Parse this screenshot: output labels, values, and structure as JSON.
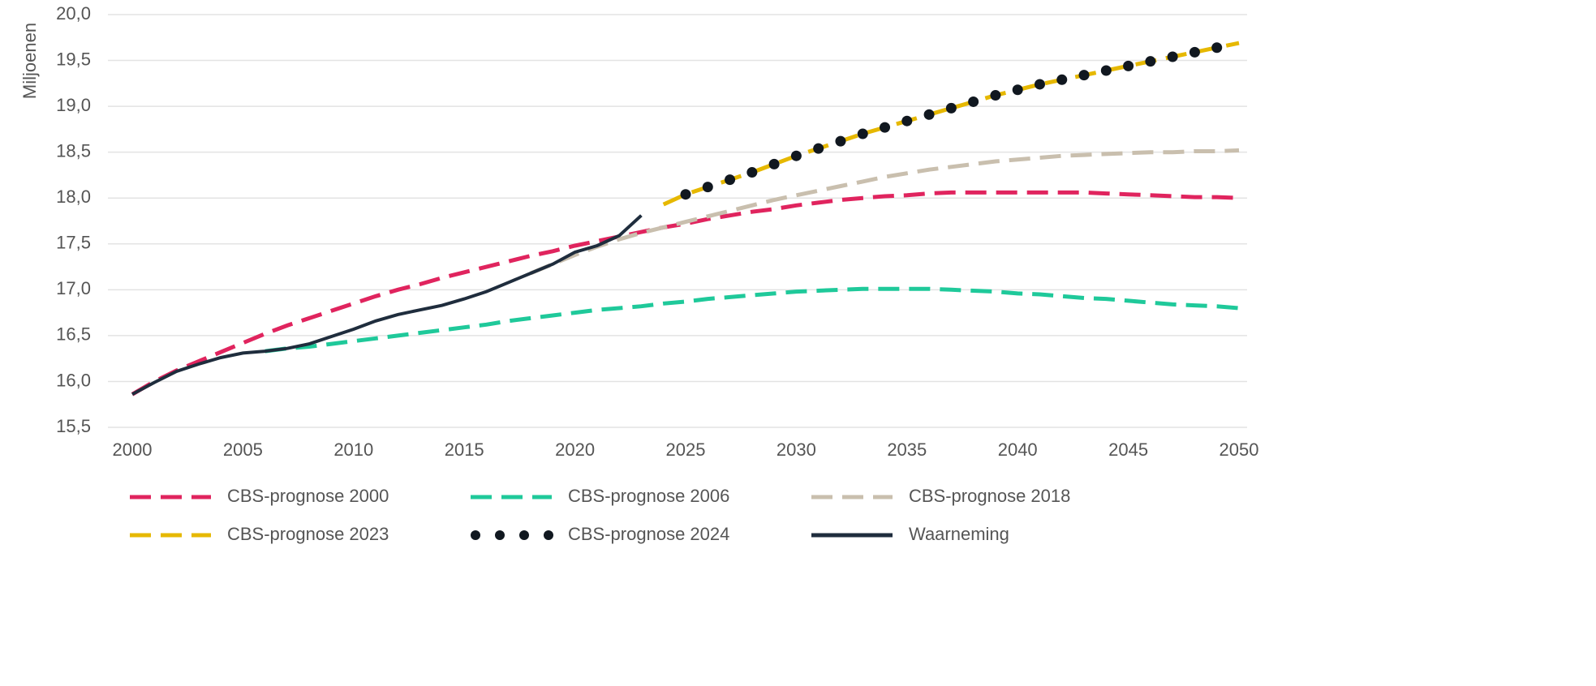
{
  "chart_data": {
    "type": "line",
    "y_label": "Miljoenen",
    "x": [
      2000,
      2001,
      2002,
      2003,
      2004,
      2005,
      2006,
      2007,
      2008,
      2009,
      2010,
      2011,
      2012,
      2013,
      2014,
      2015,
      2016,
      2017,
      2018,
      2019,
      2020,
      2021,
      2022,
      2023,
      2024,
      2025,
      2026,
      2027,
      2028,
      2029,
      2030,
      2031,
      2032,
      2033,
      2034,
      2035,
      2036,
      2037,
      2038,
      2039,
      2040,
      2041,
      2042,
      2043,
      2044,
      2045,
      2046,
      2047,
      2048,
      2049,
      2050
    ],
    "xlim": [
      2000,
      2050
    ],
    "xticks": [
      2000,
      2005,
      2010,
      2015,
      2020,
      2025,
      2030,
      2035,
      2040,
      2045,
      2050
    ],
    "ylim": [
      15.5,
      20
    ],
    "yticks": [
      {
        "value": 15.5,
        "label": "15,5"
      },
      {
        "value": 16,
        "label": "16,0"
      },
      {
        "value": 16.5,
        "label": "16,5"
      },
      {
        "value": 17,
        "label": "17,0"
      },
      {
        "value": 17.5,
        "label": "17,5"
      },
      {
        "value": 18,
        "label": "18,0"
      },
      {
        "value": 18.5,
        "label": "18,5"
      },
      {
        "value": 19,
        "label": "19,0"
      },
      {
        "value": 19.5,
        "label": "19,5"
      },
      {
        "value": 20,
        "label": "20,0"
      }
    ],
    "grid": true,
    "legend": "bottom",
    "series": [
      {
        "name": "CBS-prognose 2000",
        "color": "#e0245e",
        "dash": "dashed",
        "values": [
          15.86,
          16.0,
          16.12,
          16.22,
          16.32,
          16.42,
          16.52,
          16.61,
          16.69,
          16.77,
          16.85,
          16.93,
          17.0,
          17.06,
          17.13,
          17.19,
          17.25,
          17.31,
          17.37,
          17.42,
          17.48,
          17.53,
          17.58,
          17.63,
          17.68,
          17.72,
          17.77,
          17.81,
          17.85,
          17.88,
          17.92,
          17.95,
          17.98,
          18.0,
          18.02,
          18.03,
          18.05,
          18.06,
          18.06,
          18.06,
          18.06,
          18.06,
          18.06,
          18.06,
          18.05,
          18.04,
          18.03,
          18.02,
          18.01,
          18.01,
          18.0
        ]
      },
      {
        "name": "CBS-prognose 2006",
        "color": "#1fc99a",
        "dash": "dashed",
        "values": [
          null,
          null,
          null,
          null,
          null,
          null,
          16.33,
          16.36,
          16.38,
          16.41,
          16.44,
          16.47,
          16.5,
          16.53,
          16.56,
          16.59,
          16.62,
          16.66,
          16.69,
          16.72,
          16.75,
          16.78,
          16.8,
          16.82,
          16.85,
          16.87,
          16.9,
          16.92,
          16.94,
          16.96,
          16.98,
          16.99,
          17.0,
          17.01,
          17.01,
          17.01,
          17.01,
          17.0,
          16.99,
          16.98,
          16.96,
          16.95,
          16.93,
          16.91,
          16.9,
          16.88,
          16.86,
          16.84,
          16.83,
          16.82,
          16.8
        ]
      },
      {
        "name": "CBS-prognose 2018",
        "color": "#c9bfae",
        "dash": "dashed",
        "values": [
          null,
          null,
          null,
          null,
          null,
          null,
          null,
          null,
          null,
          null,
          null,
          null,
          null,
          null,
          null,
          null,
          null,
          null,
          17.18,
          17.28,
          17.38,
          17.47,
          17.55,
          17.62,
          17.68,
          17.74,
          17.8,
          17.86,
          17.92,
          17.98,
          18.03,
          18.08,
          18.13,
          18.18,
          18.23,
          18.27,
          18.31,
          18.34,
          18.37,
          18.4,
          18.42,
          18.44,
          18.46,
          18.47,
          18.48,
          18.49,
          18.5,
          18.5,
          18.51,
          18.51,
          18.52
        ]
      },
      {
        "name": "CBS-prognose 2023",
        "color": "#e6b800",
        "dash": "dashed",
        "values": [
          null,
          null,
          null,
          null,
          null,
          null,
          null,
          null,
          null,
          null,
          null,
          null,
          null,
          null,
          null,
          null,
          null,
          null,
          null,
          null,
          null,
          null,
          null,
          null,
          17.93,
          18.04,
          18.12,
          18.2,
          18.28,
          18.37,
          18.46,
          18.54,
          18.62,
          18.7,
          18.77,
          18.84,
          18.91,
          18.98,
          19.05,
          19.12,
          19.18,
          19.24,
          19.29,
          19.34,
          19.39,
          19.44,
          19.49,
          19.54,
          19.59,
          19.64,
          19.69
        ]
      },
      {
        "name": "CBS-prognose 2024",
        "color": "#111820",
        "dash": "dotted",
        "values": [
          null,
          null,
          null,
          null,
          null,
          null,
          null,
          null,
          null,
          null,
          null,
          null,
          null,
          null,
          null,
          null,
          null,
          null,
          null,
          null,
          null,
          null,
          null,
          null,
          null,
          18.04,
          18.12,
          18.2,
          18.28,
          18.37,
          18.46,
          18.54,
          18.62,
          18.7,
          18.77,
          18.84,
          18.91,
          18.98,
          19.05,
          19.12,
          19.18,
          19.24,
          19.29,
          19.34,
          19.39,
          19.44,
          19.49,
          19.54,
          19.59,
          19.64,
          null
        ]
      },
      {
        "name": "Waarneming",
        "color": "#1f2d3d",
        "dash": "solid",
        "values": [
          15.86,
          15.99,
          16.11,
          16.19,
          16.26,
          16.31,
          16.33,
          16.36,
          16.41,
          16.49,
          16.57,
          16.66,
          16.73,
          16.78,
          16.83,
          16.9,
          16.98,
          17.08,
          17.18,
          17.28,
          17.41,
          17.48,
          17.59,
          17.81,
          null,
          null,
          null,
          null,
          null,
          null,
          null,
          null,
          null,
          null,
          null,
          null,
          null,
          null,
          null,
          null,
          null,
          null,
          null,
          null,
          null,
          null,
          null,
          null,
          null,
          null,
          null
        ]
      }
    ]
  }
}
